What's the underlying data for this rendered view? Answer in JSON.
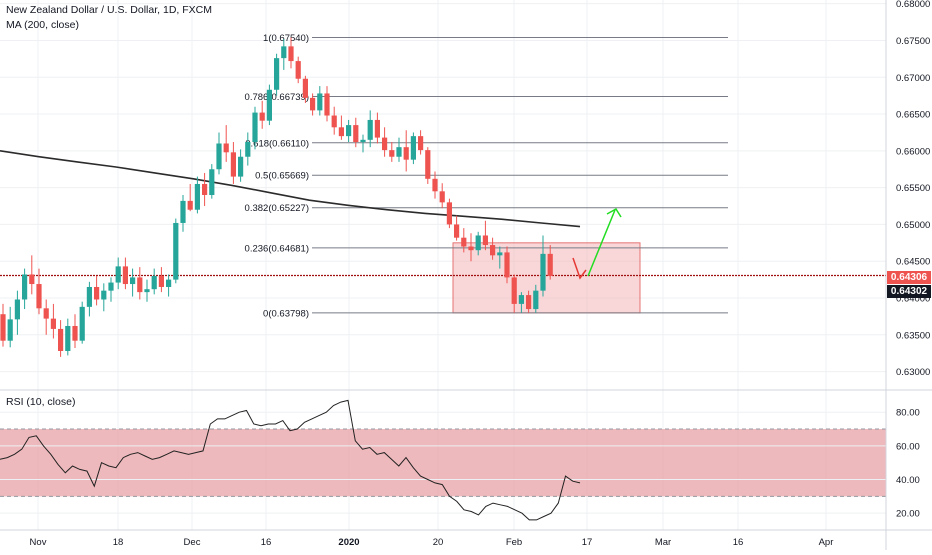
{
  "header": {
    "symbol_title": "New Zealand Dollar / U.S. Dollar, 1D, FXCM",
    "ma_label": "MA (200, close)",
    "rsi_label": "RSI (10, close)"
  },
  "colors": {
    "up": "#26a69a",
    "down": "#ef5350",
    "ma": "#2b2b2b",
    "fib": "#787b86",
    "zone_fill": "#f4b6b8",
    "zone_border": "#e57373",
    "rsi_band": "#e8a1a5",
    "rsi_line": "#222222",
    "hline": "#a01010",
    "arrow_up": "#22dd22",
    "arrow_down": "#e53935",
    "tag_dark": "#131722",
    "tag_red": "#ef5350"
  },
  "price_tags": {
    "hline_value": "0.64306",
    "last_value": "0.64302"
  },
  "chart_data": [
    {
      "type": "candlestick",
      "title": "New Zealand Dollar / U.S. Dollar, 1D, FXCM",
      "y_axis_ticks": [
        "0.68000",
        "0.67500",
        "0.67000",
        "0.66500",
        "0.66000",
        "0.65500",
        "0.65000",
        "0.64500",
        "0.64000",
        "0.63500",
        "0.63000"
      ],
      "ylim": [
        0.6275,
        0.6805
      ],
      "x_axis_ticks": [
        "Nov",
        "18",
        "Dec",
        "16",
        "2020",
        "20",
        "Feb",
        "17",
        "Mar",
        "16",
        "Apr"
      ],
      "series": [
        {
          "name": "MA (200, close)",
          "type": "line",
          "values": [
            0.66,
            0.6592,
            0.6585,
            0.6578,
            0.657,
            0.6562,
            0.6553,
            0.6543,
            0.6533,
            0.6526,
            0.652,
            0.6515,
            0.6511,
            0.6507,
            0.6502,
            0.6497
          ]
        },
        {
          "name": "Fibonacci retracement",
          "type": "levels",
          "levels": [
            {
              "label": "1(0.67540)",
              "value": 0.6754
            },
            {
              "label": "0.786(0.66739)",
              "value": 0.66739
            },
            {
              "label": "0.618(0.66110)",
              "value": 0.6611
            },
            {
              "label": "0.5(0.65669)",
              "value": 0.65669
            },
            {
              "label": "0.382(0.65227)",
              "value": 0.65227
            },
            {
              "label": "0.236(0.64681)",
              "value": 0.64681
            },
            {
              "label": "0(0.63798)",
              "value": 0.63798
            }
          ]
        },
        {
          "name": "NZDUSD",
          "type": "ohlc",
          "values": [
            [
              0.6378,
              0.6392,
              0.6334,
              0.6342
            ],
            [
              0.6342,
              0.6388,
              0.6333,
              0.6371
            ],
            [
              0.6371,
              0.641,
              0.635,
              0.6398
            ],
            [
              0.6398,
              0.644,
              0.6385,
              0.6432
            ],
            [
              0.6432,
              0.6458,
              0.6405,
              0.6419
            ],
            [
              0.6419,
              0.644,
              0.6378,
              0.6386
            ],
            [
              0.6386,
              0.6398,
              0.635,
              0.6372
            ],
            [
              0.6372,
              0.6392,
              0.6345,
              0.6358
            ],
            [
              0.6358,
              0.637,
              0.632,
              0.6328
            ],
            [
              0.6328,
              0.6372,
              0.6322,
              0.6362
            ],
            [
              0.6362,
              0.6378,
              0.6332,
              0.6342
            ],
            [
              0.6342,
              0.6395,
              0.6338,
              0.6388
            ],
            [
              0.6388,
              0.6422,
              0.6375,
              0.6415
            ],
            [
              0.6415,
              0.643,
              0.639,
              0.6398
            ],
            [
              0.6398,
              0.642,
              0.6382,
              0.641
            ],
            [
              0.641,
              0.6428,
              0.6395,
              0.6421
            ],
            [
              0.6421,
              0.6455,
              0.6412,
              0.6443
            ],
            [
              0.6443,
              0.6455,
              0.6412,
              0.6419
            ],
            [
              0.6419,
              0.644,
              0.6402,
              0.6428
            ],
            [
              0.6428,
              0.6442,
              0.6398,
              0.6408
            ],
            [
              0.6408,
              0.6425,
              0.6395,
              0.6412
            ],
            [
              0.6412,
              0.644,
              0.6405,
              0.643
            ],
            [
              0.643,
              0.6442,
              0.6408,
              0.6415
            ],
            [
              0.6415,
              0.6432,
              0.6402,
              0.6425
            ],
            [
              0.6425,
              0.6508,
              0.642,
              0.6502
            ],
            [
              0.6502,
              0.654,
              0.649,
              0.6532
            ],
            [
              0.6532,
              0.6555,
              0.6518,
              0.652
            ],
            [
              0.652,
              0.6565,
              0.6515,
              0.6555
            ],
            [
              0.6555,
              0.657,
              0.6525,
              0.654
            ],
            [
              0.654,
              0.6582,
              0.6535,
              0.6575
            ],
            [
              0.6575,
              0.6625,
              0.6568,
              0.661
            ],
            [
              0.661,
              0.6635,
              0.6585,
              0.6598
            ],
            [
              0.6598,
              0.6612,
              0.6555,
              0.6565
            ],
            [
              0.6565,
              0.6602,
              0.6558,
              0.6592
            ],
            [
              0.6592,
              0.6625,
              0.658,
              0.6612
            ],
            [
              0.6612,
              0.666,
              0.6602,
              0.6652
            ],
            [
              0.6652,
              0.6668,
              0.663,
              0.6641
            ],
            [
              0.6641,
              0.669,
              0.6635,
              0.6683
            ],
            [
              0.6683,
              0.6732,
              0.6675,
              0.6726
            ],
            [
              0.6726,
              0.6752,
              0.671,
              0.6742
            ],
            [
              0.6742,
              0.6754,
              0.6712,
              0.6722
            ],
            [
              0.6722,
              0.6728,
              0.6692,
              0.6698
            ],
            [
              0.6698,
              0.6702,
              0.6665,
              0.6672
            ],
            [
              0.6672,
              0.6678,
              0.6648,
              0.6655
            ],
            [
              0.6655,
              0.6688,
              0.6648,
              0.6678
            ],
            [
              0.6678,
              0.6688,
              0.664,
              0.6648
            ],
            [
              0.6648,
              0.666,
              0.6622,
              0.6632
            ],
            [
              0.6632,
              0.6648,
              0.6615,
              0.662
            ],
            [
              0.662,
              0.6642,
              0.6612,
              0.6635
            ],
            [
              0.6635,
              0.6645,
              0.6605,
              0.6612
            ],
            [
              0.6612,
              0.6622,
              0.6598,
              0.6615
            ],
            [
              0.6615,
              0.6655,
              0.6605,
              0.6642
            ],
            [
              0.6642,
              0.6652,
              0.661,
              0.6618
            ],
            [
              0.6618,
              0.6632,
              0.6592,
              0.6601
            ],
            [
              0.6601,
              0.6612,
              0.6585,
              0.6592
            ],
            [
              0.6592,
              0.6618,
              0.6585,
              0.6605
            ],
            [
              0.6605,
              0.6628,
              0.6572,
              0.6588
            ],
            [
              0.6588,
              0.6625,
              0.6582,
              0.662
            ],
            [
              0.662,
              0.6628,
              0.6595,
              0.6601
            ],
            [
              0.6601,
              0.6605,
              0.6555,
              0.6562
            ],
            [
              0.6562,
              0.6572,
              0.6535,
              0.6545
            ],
            [
              0.6545,
              0.6556,
              0.6522,
              0.653
            ],
            [
              0.653,
              0.6535,
              0.6495,
              0.65
            ],
            [
              0.65,
              0.6512,
              0.6478,
              0.6482
            ],
            [
              0.6482,
              0.6495,
              0.6462,
              0.647
            ],
            [
              0.647,
              0.6488,
              0.645,
              0.6465
            ],
            [
              0.6465,
              0.649,
              0.6458,
              0.6485
            ],
            [
              0.6485,
              0.6505,
              0.6465,
              0.6472
            ],
            [
              0.6472,
              0.6482,
              0.6452,
              0.6458
            ],
            [
              0.6458,
              0.647,
              0.644,
              0.6462
            ],
            [
              0.6462,
              0.647,
              0.642,
              0.6428
            ],
            [
              0.6428,
              0.6432,
              0.638,
              0.6392
            ],
            [
              0.6392,
              0.6408,
              0.638,
              0.6404
            ],
            [
              0.6404,
              0.641,
              0.638,
              0.6385
            ],
            [
              0.6385,
              0.6418,
              0.638,
              0.641
            ],
            [
              0.641,
              0.6485,
              0.6402,
              0.646
            ],
            [
              0.646,
              0.6472,
              0.6425,
              0.643
            ]
          ]
        }
      ],
      "annotations": [
        {
          "type": "horizontal_line",
          "value": 0.64306,
          "label": "0.64306"
        },
        {
          "type": "last_price",
          "value": 0.64302,
          "label": "0.64302"
        },
        {
          "type": "rectangle_zone",
          "y_range": [
            0.63798,
            0.6475
          ]
        },
        {
          "type": "arrow",
          "direction": "down",
          "color": "red"
        },
        {
          "type": "arrow",
          "direction": "up",
          "color": "green"
        }
      ]
    },
    {
      "type": "line",
      "title": "RSI (10, close)",
      "y_axis_ticks": [
        "80.00",
        "60.00",
        "40.00",
        "20.00"
      ],
      "ylim": [
        10,
        92
      ],
      "band": [
        30,
        70
      ],
      "series": [
        {
          "name": "RSI (10, close)",
          "values": [
            52,
            53,
            55,
            58,
            65,
            66,
            60,
            55,
            49,
            44,
            48,
            46,
            45,
            36,
            50,
            48,
            47,
            53,
            55,
            56,
            54,
            52,
            53,
            55,
            57,
            56,
            55,
            56,
            57,
            73,
            76,
            76,
            78,
            80,
            81,
            73,
            72,
            73,
            73,
            75,
            69,
            70,
            74,
            76,
            78,
            80,
            84,
            86,
            87,
            63,
            58,
            59,
            55,
            56,
            52,
            48,
            53,
            47,
            42,
            40,
            38,
            37,
            30,
            27,
            22,
            21,
            19,
            24,
            26,
            25,
            24,
            22,
            20,
            16,
            16,
            18,
            20,
            26,
            42,
            39,
            38
          ]
        }
      ]
    }
  ]
}
